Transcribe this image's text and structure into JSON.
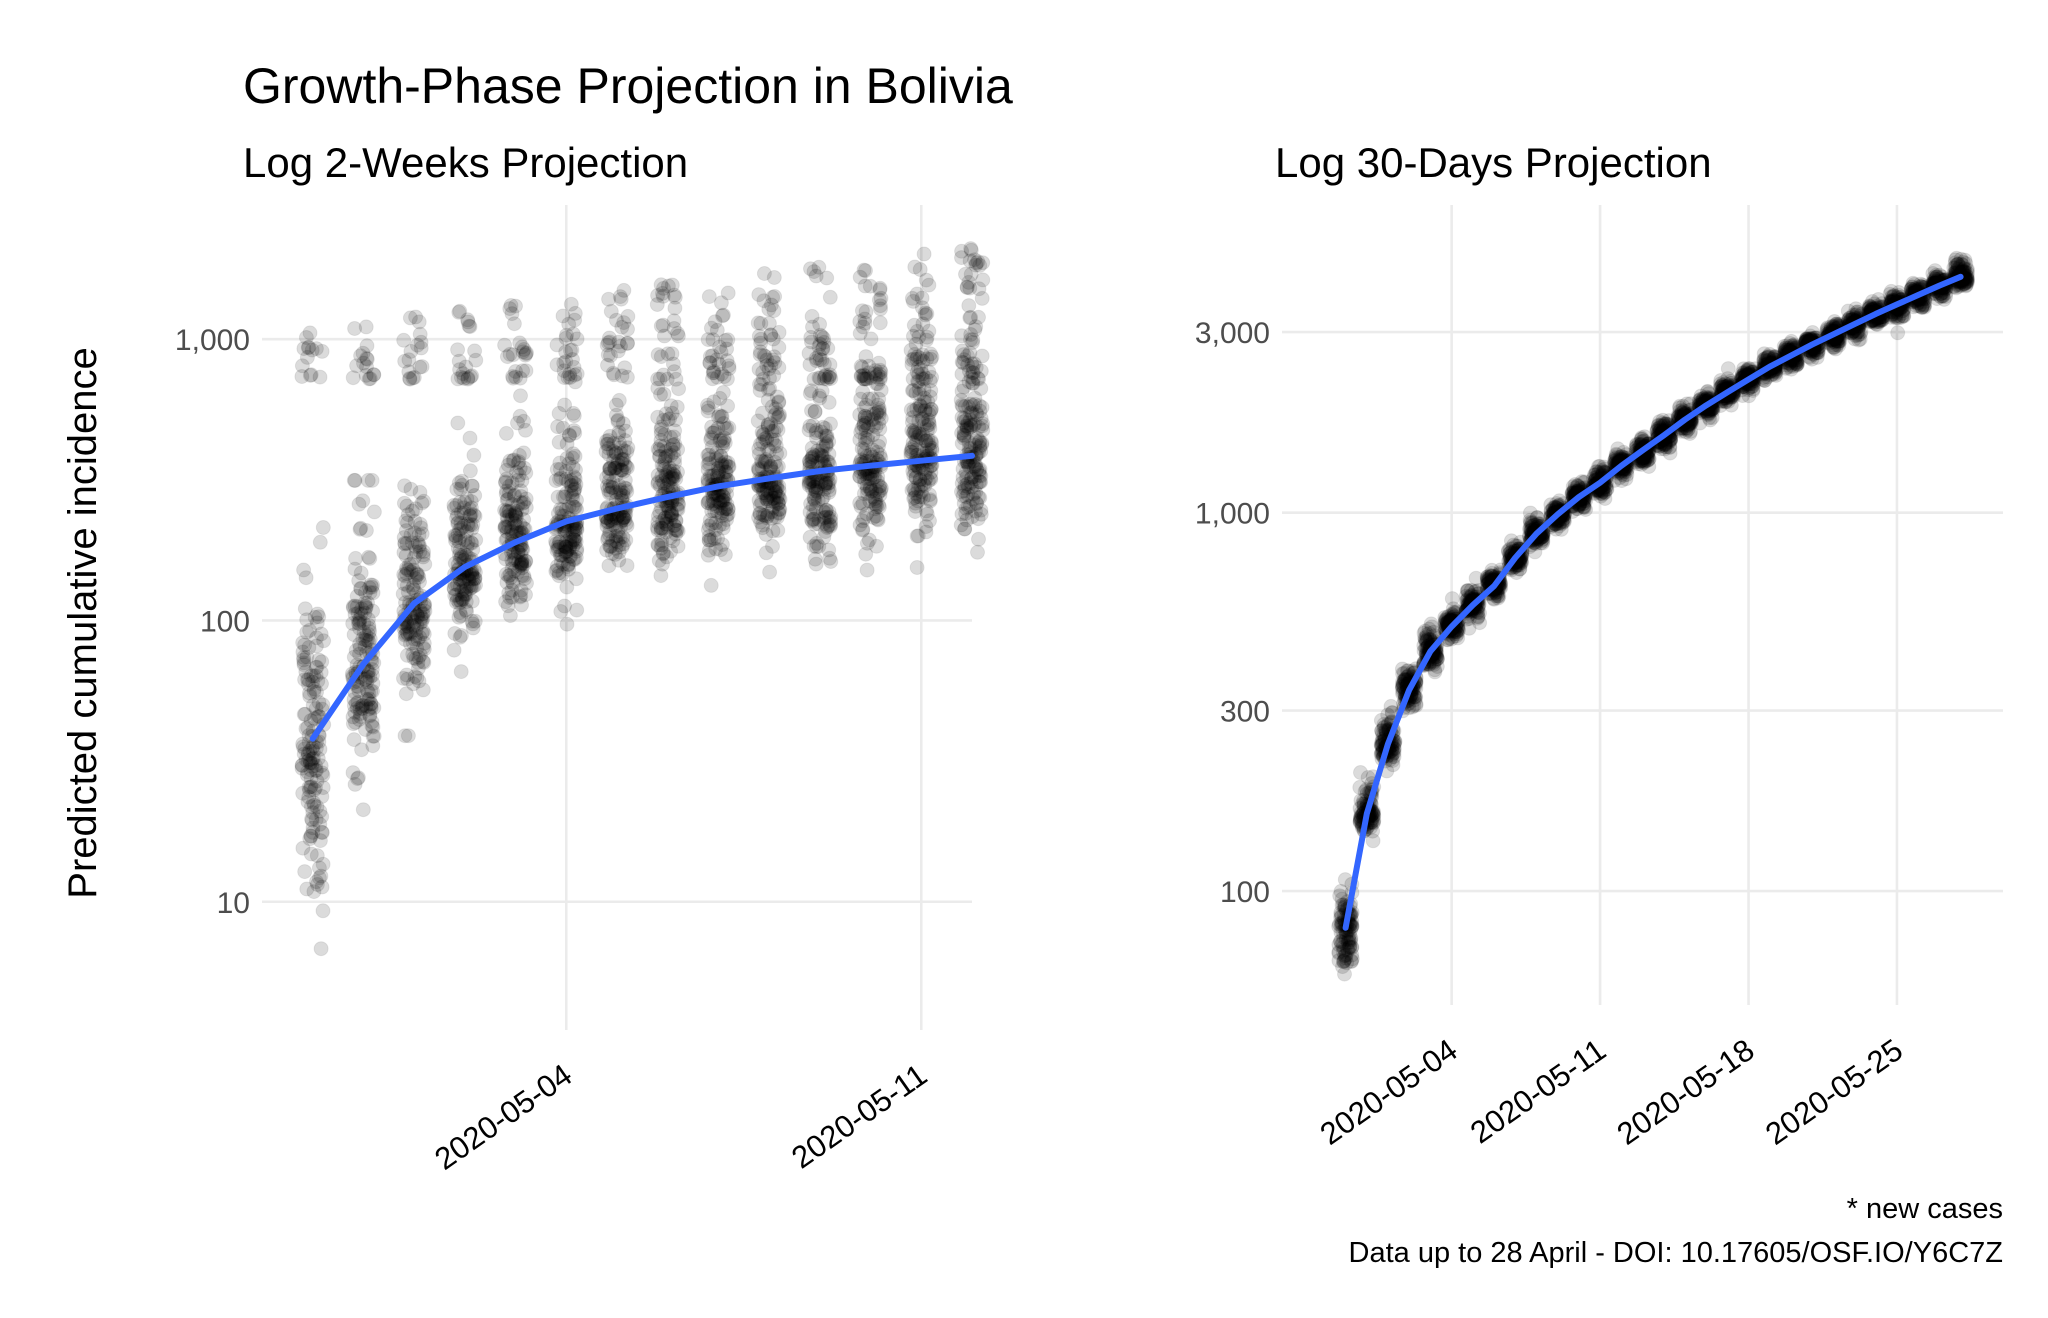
{
  "figure": {
    "title": "Growth-Phase Projection in Bolivia",
    "caption_line1": "* new cases",
    "caption_line2": "Data up to 28 April - DOI: 10.17605/OSF.IO/Y6C7Z"
  },
  "chart_data": [
    {
      "type": "scatter",
      "title": "Log 2-Weeks Projection",
      "xlabel": "",
      "ylabel": "Predicted cumulative incidence",
      "y_scale": "log10",
      "x_dates": [
        "2020-04-29",
        "2020-04-30",
        "2020-05-01",
        "2020-05-02",
        "2020-05-03",
        "2020-05-04",
        "2020-05-05",
        "2020-05-06",
        "2020-05-07",
        "2020-05-08",
        "2020-05-09",
        "2020-05-10",
        "2020-05-11",
        "2020-05-12"
      ],
      "xlim": [
        "2020-04-28",
        "2020-05-12"
      ],
      "ylim": [
        3.5,
        3000
      ],
      "x_ticks": [
        "2020-05-04",
        "2020-05-11"
      ],
      "y_ticks": [
        10,
        100,
        1000
      ],
      "y_tick_labels": [
        "10",
        "100",
        "1,000"
      ],
      "series": [
        {
          "type": "line",
          "color": "#3366ff",
          "y": [
            38,
            70,
            115,
            155,
            190,
            225,
            250,
            275,
            300,
            320,
            340,
            355,
            370,
            385
          ]
        },
        {
          "type": "points",
          "y_median": [
            38,
            70,
            115,
            155,
            190,
            225,
            250,
            275,
            300,
            320,
            340,
            355,
            370,
            385
          ],
          "y_spread_low": [
            8,
            30,
            55,
            80,
            110,
            130,
            150,
            160,
            170,
            180,
            180,
            190,
            195,
            200
          ],
          "y_spread_high": [
            170,
            250,
            320,
            400,
            500,
            560,
            600,
            650,
            700,
            750,
            800,
            850,
            900,
            950
          ],
          "y_outlier_band": [
            720,
            2300
          ]
        }
      ],
      "grid": true,
      "legend": "none"
    },
    {
      "type": "scatter",
      "title": "Log 30-Days Projection",
      "xlabel": "",
      "ylabel": "",
      "y_scale": "log10",
      "x_dates": [
        "2020-04-29",
        "2020-04-30",
        "2020-05-01",
        "2020-05-02",
        "2020-05-03",
        "2020-05-04",
        "2020-05-05",
        "2020-05-06",
        "2020-05-07",
        "2020-05-08",
        "2020-05-09",
        "2020-05-10",
        "2020-05-11",
        "2020-05-12",
        "2020-05-13",
        "2020-05-14",
        "2020-05-15",
        "2020-05-16",
        "2020-05-17",
        "2020-05-18",
        "2020-05-19",
        "2020-05-20",
        "2020-05-21",
        "2020-05-22",
        "2020-05-23",
        "2020-05-24",
        "2020-05-25",
        "2020-05-26",
        "2020-05-27",
        "2020-05-28"
      ],
      "xlim": [
        "2020-04-26",
        "2020-05-30"
      ],
      "ylim": [
        50,
        6500
      ],
      "x_ticks": [
        "2020-05-04",
        "2020-05-11",
        "2020-05-18",
        "2020-05-25"
      ],
      "y_ticks": [
        100,
        300,
        1000,
        3000
      ],
      "y_tick_labels": [
        "100",
        "300",
        "1,000",
        "3,000"
      ],
      "series": [
        {
          "type": "line",
          "color": "#3366ff",
          "y": [
            80,
            160,
            245,
            340,
            430,
            500,
            570,
            640,
            760,
            880,
            990,
            1100,
            1200,
            1330,
            1460,
            1600,
            1760,
            1920,
            2080,
            2250,
            2430,
            2600,
            2780,
            2960,
            3150,
            3350,
            3550,
            3760,
            3980,
            4200
          ]
        },
        {
          "type": "points",
          "y_median": [
            80,
            160,
            245,
            340,
            430,
            500,
            570,
            640,
            760,
            880,
            990,
            1100,
            1200,
            1330,
            1460,
            1600,
            1760,
            1920,
            2080,
            2250,
            2430,
            2600,
            2780,
            2960,
            3150,
            3350,
            3550,
            3760,
            3980,
            4200
          ],
          "y_spread_low": [
            60,
            140,
            215,
            300,
            390,
            460,
            520,
            590,
            700,
            810,
            910,
            1010,
            1110,
            1220,
            1340,
            1470,
            1620,
            1770,
            1920,
            2080,
            2240,
            2400,
            2570,
            2740,
            2910,
            3100,
            3280,
            3470,
            3680,
            3880
          ],
          "y_spread_high": [
            105,
            200,
            290,
            390,
            490,
            560,
            630,
            700,
            830,
            960,
            1080,
            1200,
            1300,
            1440,
            1580,
            1730,
            1900,
            2070,
            2240,
            2420,
            2610,
            2800,
            2990,
            3180,
            3380,
            3600,
            3820,
            4040,
            4270,
            4700
          ]
        }
      ],
      "grid": true,
      "legend": "none"
    }
  ]
}
